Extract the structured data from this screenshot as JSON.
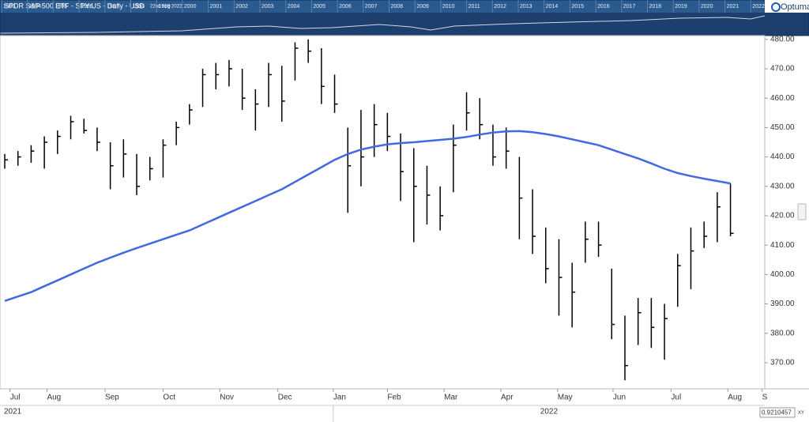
{
  "chart_data": {
    "type": "ohlc",
    "title": "SPDR S&P 500 ETF - SPY:US - Daily - USD",
    "subtitle": "22nd Aug 2022",
    "logo": "Optuma",
    "navigator_years": [
      "1993",
      "1994",
      "1995",
      "1996",
      "1997",
      "1998",
      "1999",
      "2000",
      "2001",
      "2002",
      "2003",
      "2004",
      "2005",
      "2006",
      "2007",
      "2008",
      "2009",
      "2010",
      "2011",
      "2012",
      "2013",
      "2014",
      "2015",
      "2016",
      "2017",
      "2018",
      "2019",
      "2020",
      "2021",
      "2022"
    ],
    "categories": [
      null,
      null,
      null,
      null,
      null,
      null,
      null,
      null,
      null,
      null,
      null,
      null,
      null,
      null,
      null,
      null,
      null,
      null,
      null,
      null,
      null,
      null,
      null,
      null,
      null,
      null,
      null,
      null,
      null,
      null,
      null,
      null,
      null,
      null,
      null,
      null,
      null,
      null,
      null,
      null,
      null,
      null,
      null,
      null,
      null,
      null,
      null,
      null,
      null,
      null,
      null,
      null,
      null,
      null,
      null,
      null
    ],
    "high": [
      441,
      442,
      444,
      447,
      449,
      454,
      453,
      450,
      445,
      446,
      441,
      440,
      446,
      452,
      458,
      470,
      472,
      473,
      470,
      463,
      472,
      471,
      479,
      480,
      477,
      468,
      450,
      456,
      458,
      455,
      448,
      443,
      437,
      430,
      451,
      462,
      460,
      451,
      450,
      440,
      429,
      416,
      412,
      404,
      418,
      418,
      402,
      386,
      392,
      392,
      390,
      407,
      416,
      418,
      428,
      431
    ],
    "low": [
      436,
      437,
      438,
      436,
      441,
      446,
      448,
      442,
      429,
      433,
      427,
      432,
      433,
      444,
      451,
      457,
      463,
      464,
      456,
      449,
      457,
      452,
      466,
      472,
      458,
      455,
      421,
      430,
      440,
      442,
      425,
      411,
      417,
      415,
      428,
      449,
      446,
      437,
      436,
      412,
      407,
      397,
      386,
      382,
      404,
      406,
      378,
      364,
      376,
      375,
      371,
      389,
      395,
      409,
      411,
      413
    ],
    "close": [
      439,
      440,
      442,
      445,
      447,
      452,
      449,
      445,
      437,
      441,
      430,
      436,
      444,
      450,
      456,
      468,
      468,
      470,
      460,
      458,
      468,
      459,
      477,
      476,
      464,
      458,
      437,
      440,
      451,
      447,
      435,
      430,
      427,
      420,
      444,
      455,
      451,
      440,
      442,
      426,
      413,
      402,
      399,
      394,
      412,
      410,
      383,
      369,
      387,
      382,
      385,
      403,
      408,
      413,
      423,
      414
    ],
    "bar_color": "#000000",
    "moving_average": {
      "color": "#4169e1",
      "values": [
        391,
        392.5,
        394,
        396,
        398,
        400,
        402,
        404,
        405.7,
        407.4,
        409,
        410.5,
        412,
        413.5,
        415,
        417,
        419,
        421,
        423,
        425,
        427,
        429,
        431.5,
        434,
        436.5,
        439,
        441,
        442.5,
        443.5,
        444.3,
        444.7,
        445,
        445.4,
        445.8,
        446.2,
        446.8,
        447.6,
        448.3,
        448.7,
        448.8,
        448.4,
        447.8,
        447,
        446,
        445,
        444,
        442.5,
        441,
        439.5,
        437.8,
        436,
        434.5,
        433.5,
        432.6,
        431.8,
        431
      ]
    },
    "xlim": [
      -0.36,
      57.6
    ],
    "xticks": [
      {
        "value": 0.4,
        "label": "Jul"
      },
      {
        "value": 3.2,
        "label": "Aug"
      },
      {
        "value": 7.6,
        "label": "Sep"
      },
      {
        "value": 12,
        "label": "Oct"
      },
      {
        "value": 16.3,
        "label": "Nov"
      },
      {
        "value": 20.7,
        "label": "Dec"
      },
      {
        "value": 24.9,
        "label": "Jan"
      },
      {
        "value": 29,
        "label": "Feb"
      },
      {
        "value": 33.3,
        "label": "Mar"
      },
      {
        "value": 37.6,
        "label": "Apr"
      },
      {
        "value": 41.9,
        "label": "May"
      },
      {
        "value": 46.1,
        "label": "Jun"
      },
      {
        "value": 50.5,
        "label": "Jul"
      },
      {
        "value": 54.8,
        "label": "Aug"
      },
      {
        "value": 57.4,
        "label": "S"
      }
    ],
    "year_ticks": [
      {
        "value": -0.36,
        "label": "2021"
      },
      {
        "value": 24.9,
        "label": "2022"
      }
    ],
    "ylim": [
      361.1,
      481.3
    ],
    "yticks": [
      {
        "value": 370,
        "label": "370.00"
      },
      {
        "value": 380,
        "label": "380.00"
      },
      {
        "value": 390,
        "label": "390.00"
      },
      {
        "value": 400,
        "label": "400.00"
      },
      {
        "value": 410,
        "label": "410.00"
      },
      {
        "value": 420,
        "label": "420.00"
      },
      {
        "value": 430,
        "label": "430.00"
      },
      {
        "value": 440,
        "label": "440.00"
      },
      {
        "value": 450,
        "label": "450.00"
      },
      {
        "value": 460,
        "label": "460.00"
      },
      {
        "value": 470,
        "label": "470.00"
      },
      {
        "value": 480,
        "label": "480.00"
      }
    ],
    "cursor_value": "0.9210457",
    "cursor_mode": "XY"
  }
}
